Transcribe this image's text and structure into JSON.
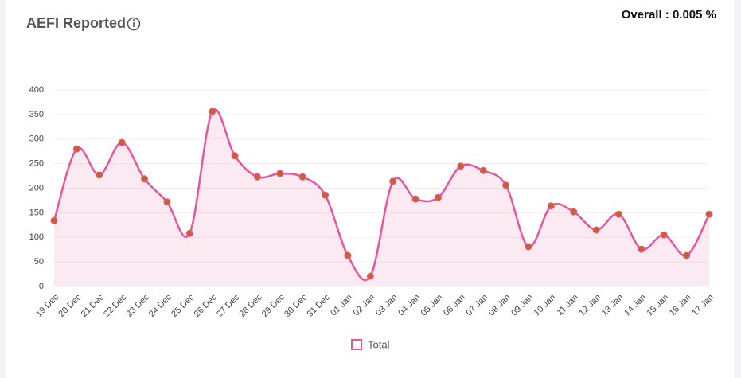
{
  "chart_data": {
    "type": "line",
    "title": "AEFI Reported",
    "overall": "Overall : 0.005 %",
    "categories": [
      "19 Dec",
      "20 Dec",
      "21 Dec",
      "22 Dec",
      "23 Dec",
      "24 Dec",
      "25 Dec",
      "26 Dec",
      "27 Dec",
      "28 Dec",
      "29 Dec",
      "30 Dec",
      "31 Dec",
      "01 Jan",
      "02 Jan",
      "03 Jan",
      "04 Jan",
      "05 Jan",
      "06 Jan",
      "07 Jan",
      "08 Jan",
      "09 Jan",
      "10 Jan",
      "11 Jan",
      "12 Jan",
      "13 Jan",
      "14 Jan",
      "15 Jan",
      "16 Jan",
      "17 Jan"
    ],
    "series": [
      {
        "name": "Total",
        "color": "#e8559b",
        "values": [
          134,
          280,
          227,
          293,
          219,
          172,
          108,
          356,
          266,
          223,
          230,
          223,
          186,
          63,
          21,
          214,
          178,
          181,
          245,
          236,
          206,
          81,
          164,
          152,
          115,
          147,
          76,
          105,
          63,
          147
        ]
      }
    ],
    "ylim": [
      0,
      400
    ],
    "yticks": [
      0,
      50,
      100,
      150,
      200,
      250,
      300,
      350,
      400
    ],
    "grid": true
  }
}
